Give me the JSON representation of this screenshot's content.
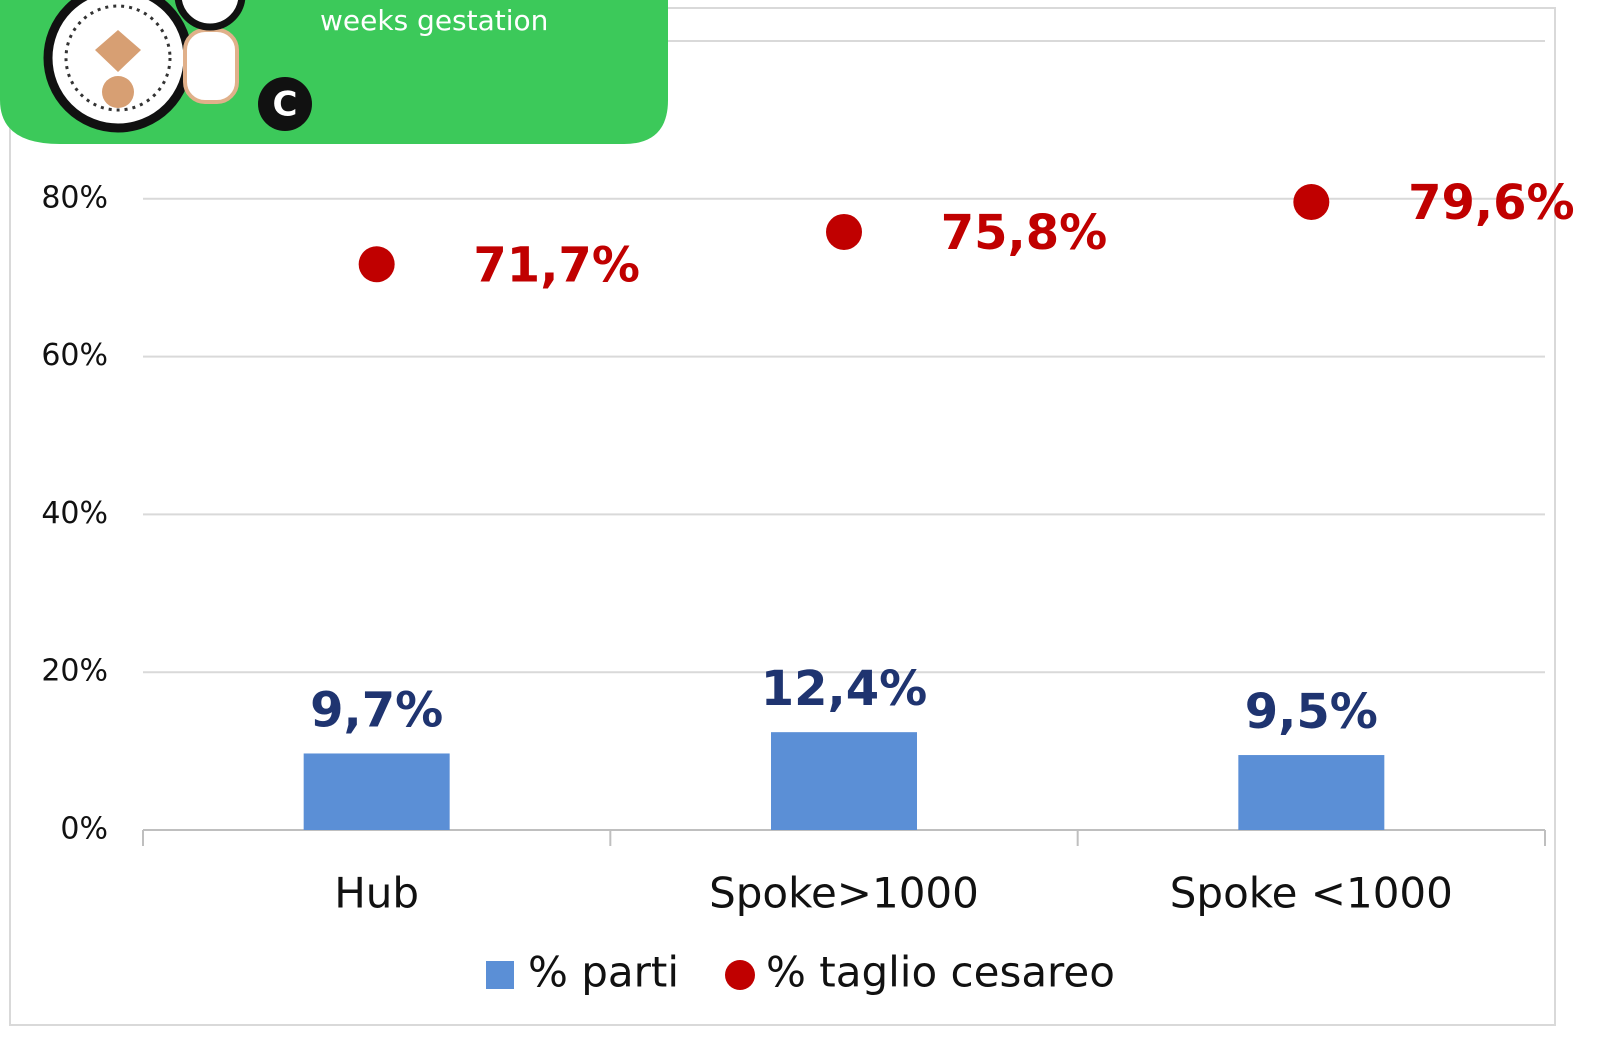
{
  "banner": {
    "text": "weeks gestation"
  },
  "chart_data": {
    "type": "bar",
    "categories": [
      "Hub",
      "Spoke>1000",
      "Spoke <1000"
    ],
    "series": [
      {
        "name": "% parti",
        "type": "bar",
        "color": "#5b8fd6",
        "label_color": "#1f3470",
        "values": [
          9.7,
          12.4,
          9.5
        ],
        "value_labels": [
          "9,7%",
          "12,4%",
          "9,5%"
        ]
      },
      {
        "name": "% taglio cesareo",
        "type": "scatter",
        "color": "#c00000",
        "label_color": "#c00000",
        "values": [
          71.7,
          75.8,
          79.6
        ],
        "value_labels": [
          "71,7%",
          "75,8%",
          "79,6%"
        ]
      }
    ],
    "ylim": [
      0,
      100
    ],
    "yticks": [
      {
        "value": 0,
        "label": "0%"
      },
      {
        "value": 20,
        "label": "20%"
      },
      {
        "value": 40,
        "label": "40%"
      },
      {
        "value": 60,
        "label": "60%"
      },
      {
        "value": 80,
        "label": "80%"
      }
    ],
    "grid": true,
    "legend": "bottom"
  }
}
